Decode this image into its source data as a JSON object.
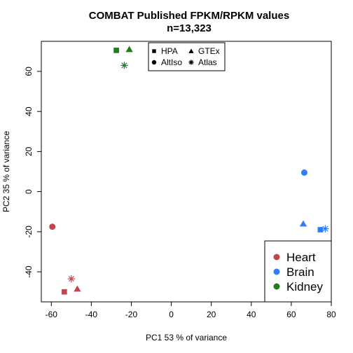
{
  "chart_data": {
    "type": "scatter",
    "title": "COMBAT  Published FPKM/RPKM values",
    "subtitle": "n=13,323",
    "xlabel": "PC1 53 % of variance",
    "ylabel": "PC2 35 % of variance",
    "xlim": [
      -65,
      80
    ],
    "ylim": [
      -55,
      75
    ],
    "xticks": [
      -60,
      -40,
      -20,
      0,
      20,
      40,
      60,
      80
    ],
    "yticks": [
      -40,
      -20,
      0,
      20,
      40,
      60
    ],
    "xtick_labels": [
      "-60",
      "-40",
      "-20",
      "0",
      "20",
      "40",
      "60",
      "80"
    ],
    "ytick_labels": [
      "-40",
      "-20",
      "0",
      "20",
      "40",
      "60"
    ],
    "grid": false,
    "shape_legend": {
      "placement": "top-center",
      "entries": [
        {
          "label": "HPA",
          "shape": "square"
        },
        {
          "label": "GTEx",
          "shape": "triangle"
        },
        {
          "label": "AltIso",
          "shape": "circle"
        },
        {
          "label": "Atlas",
          "shape": "asterisk"
        }
      ]
    },
    "color_legend": {
      "placement": "bottom-right",
      "entries": [
        {
          "label": "Heart",
          "color": "#c0474e"
        },
        {
          "label": "Brain",
          "color": "#2f7ef6"
        },
        {
          "label": "Kidney",
          "color": "#1f7d1f"
        }
      ]
    },
    "points": [
      {
        "tissue": "Heart",
        "source": "AltIso",
        "shape": "circle",
        "color": "#c0474e",
        "x": -59.5,
        "y": -17.5
      },
      {
        "tissue": "Heart",
        "source": "Atlas",
        "shape": "asterisk",
        "color": "#c0474e",
        "x": -50,
        "y": -43.5
      },
      {
        "tissue": "Heart",
        "source": "HPA",
        "shape": "square",
        "color": "#c0474e",
        "x": -53.5,
        "y": -50
      },
      {
        "tissue": "Heart",
        "source": "GTEx",
        "shape": "triangle",
        "color": "#c0474e",
        "x": -47,
        "y": -48.5
      },
      {
        "tissue": "Brain",
        "source": "AltIso",
        "shape": "circle",
        "color": "#2f7ef6",
        "x": 66.5,
        "y": 9.5
      },
      {
        "tissue": "Brain",
        "source": "GTEx",
        "shape": "triangle",
        "color": "#2f7ef6",
        "x": 66,
        "y": -16
      },
      {
        "tissue": "Brain",
        "source": "HPA",
        "shape": "square",
        "color": "#2f7ef6",
        "x": 74.5,
        "y": -19
      },
      {
        "tissue": "Brain",
        "source": "Atlas",
        "shape": "asterisk",
        "color": "#2f7ef6",
        "x": 77,
        "y": -18.5
      },
      {
        "tissue": "Kidney",
        "source": "HPA",
        "shape": "square",
        "color": "#1f7d1f",
        "x": -27.5,
        "y": 70.5
      },
      {
        "tissue": "Kidney",
        "source": "GTEx",
        "shape": "triangle",
        "color": "#1f7d1f",
        "x": -21,
        "y": 71
      },
      {
        "tissue": "Kidney",
        "source": "Atlas",
        "shape": "asterisk",
        "color": "#1f7d1f",
        "x": -23.5,
        "y": 63
      }
    ]
  }
}
